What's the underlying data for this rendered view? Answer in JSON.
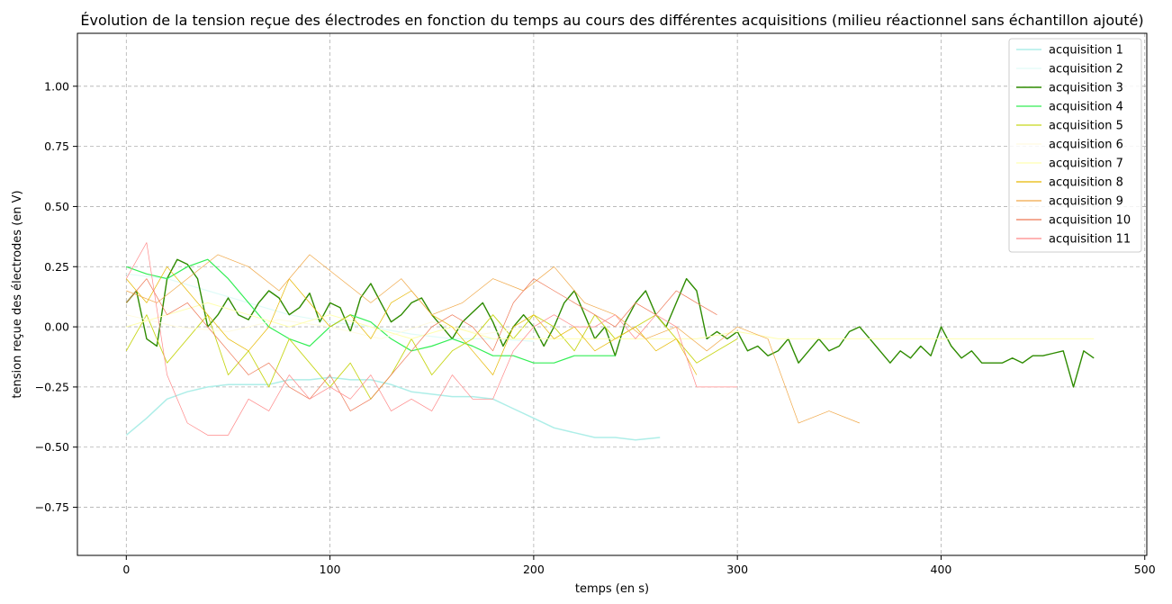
{
  "chart_data": {
    "type": "line",
    "title": "Évolution de la tension reçue des électrodes en fonction du temps au cours des différentes acquisitions (milieu réactionnel sans échantillon ajouté)",
    "xlabel": "temps (en s)",
    "ylabel": "tension reçue des électrodes (en V)",
    "xlim": [
      -24,
      501
    ],
    "ylim": [
      -0.95,
      1.22
    ],
    "xticks": [
      0,
      100,
      200,
      300,
      400,
      500
    ],
    "yticks": [
      -0.75,
      -0.5,
      -0.25,
      0.0,
      0.25,
      0.5,
      0.75,
      1.0
    ],
    "xtick_labels": [
      "0",
      "100",
      "200",
      "300",
      "400",
      "500"
    ],
    "ytick_labels": [
      "−0.75",
      "−0.50",
      "−0.25",
      "0.00",
      "0.25",
      "0.50",
      "0.75",
      "1.00"
    ],
    "grid": true,
    "legend_position": "top-right",
    "series": [
      {
        "name": "acquisition 1",
        "color": "#aeeee8",
        "width": 1.5,
        "x": [
          0,
          10,
          20,
          30,
          40,
          50,
          60,
          70,
          80,
          90,
          100,
          110,
          120,
          130,
          140,
          150,
          160,
          170,
          180,
          190,
          200,
          210,
          220,
          230,
          240,
          250,
          262
        ],
        "y": [
          -0.45,
          -0.38,
          -0.3,
          -0.27,
          -0.25,
          -0.24,
          -0.24,
          -0.24,
          -0.22,
          -0.22,
          -0.21,
          -0.22,
          -0.22,
          -0.24,
          -0.27,
          -0.28,
          -0.29,
          -0.29,
          -0.3,
          -0.34,
          -0.38,
          -0.42,
          -0.44,
          -0.46,
          -0.46,
          -0.47,
          -0.46
        ]
      },
      {
        "name": "acquisition 2",
        "color": "#e0fbf8",
        "width": 1.2,
        "x": [
          0,
          20,
          40,
          60,
          80,
          100,
          120,
          140,
          160,
          180,
          200
        ],
        "y": [
          0.22,
          0.2,
          0.15,
          0.1,
          0.05,
          0.02,
          0.0,
          -0.03,
          -0.05,
          -0.05,
          -0.06
        ]
      },
      {
        "name": "acquisition 3",
        "color": "#2e8b00",
        "width": 1.4,
        "x": [
          0,
          5,
          10,
          15,
          20,
          25,
          30,
          35,
          40,
          45,
          50,
          55,
          60,
          65,
          70,
          75,
          80,
          85,
          90,
          95,
          100,
          105,
          110,
          115,
          120,
          125,
          130,
          135,
          140,
          145,
          150,
          155,
          160,
          165,
          170,
          175,
          180,
          185,
          190,
          195,
          200,
          205,
          210,
          215,
          220,
          225,
          230,
          235,
          240,
          245,
          250,
          255,
          260,
          265,
          270,
          275,
          280,
          285,
          290,
          295,
          300,
          305,
          310,
          315,
          320,
          325,
          330,
          335,
          340,
          345,
          350,
          355,
          360,
          365,
          370,
          375,
          380,
          385,
          390,
          395,
          400,
          405,
          410,
          415,
          420,
          425,
          430,
          435,
          440,
          445,
          450,
          455,
          460,
          465,
          470,
          475
        ],
        "y": [
          0.1,
          0.15,
          -0.05,
          -0.08,
          0.2,
          0.28,
          0.26,
          0.2,
          0.0,
          0.05,
          0.12,
          0.05,
          0.03,
          0.1,
          0.15,
          0.12,
          0.05,
          0.08,
          0.14,
          0.02,
          0.1,
          0.08,
          -0.02,
          0.12,
          0.18,
          0.1,
          0.02,
          0.05,
          0.1,
          0.12,
          0.05,
          0.0,
          -0.05,
          0.02,
          0.06,
          0.1,
          0.02,
          -0.08,
          0.0,
          0.05,
          0.0,
          -0.08,
          0.0,
          0.1,
          0.15,
          0.05,
          -0.05,
          0.0,
          -0.12,
          0.02,
          0.1,
          0.15,
          0.05,
          0.0,
          0.1,
          0.2,
          0.15,
          -0.05,
          -0.02,
          -0.05,
          -0.02,
          -0.1,
          -0.08,
          -0.12,
          -0.1,
          -0.05,
          -0.15,
          -0.1,
          -0.05,
          -0.1,
          -0.08,
          -0.02,
          0.0,
          -0.05,
          -0.1,
          -0.15,
          -0.1,
          -0.13,
          -0.08,
          -0.12,
          0.0,
          -0.08,
          -0.13,
          -0.1,
          -0.15,
          -0.15,
          -0.15,
          -0.13,
          -0.15,
          -0.12,
          -0.12,
          -0.11,
          -0.1,
          -0.25,
          -0.1,
          -0.13
        ]
      },
      {
        "name": "acquisition 4",
        "color": "#33ee55",
        "width": 1.2,
        "x": [
          0,
          10,
          20,
          30,
          40,
          50,
          60,
          70,
          80,
          90,
          100,
          110,
          120,
          130,
          140,
          150,
          160,
          170,
          180,
          190,
          200,
          210,
          220,
          230,
          240
        ],
        "y": [
          0.25,
          0.22,
          0.2,
          0.25,
          0.28,
          0.2,
          0.1,
          0.0,
          -0.05,
          -0.08,
          0.0,
          0.05,
          0.02,
          -0.05,
          -0.1,
          -0.08,
          -0.05,
          -0.08,
          -0.12,
          -0.12,
          -0.15,
          -0.15,
          -0.12,
          -0.12,
          -0.12
        ]
      },
      {
        "name": "acquisition 5",
        "color": "#c8d61a",
        "width": 0.9,
        "x": [
          0,
          10,
          20,
          30,
          40,
          50,
          60,
          70,
          80,
          90,
          100,
          110,
          120,
          130,
          140,
          150,
          160,
          170,
          180,
          190,
          200,
          210,
          220,
          230,
          240,
          250,
          260,
          270,
          280,
          290,
          300
        ],
        "y": [
          -0.1,
          0.05,
          -0.15,
          -0.05,
          0.05,
          -0.2,
          -0.1,
          -0.25,
          -0.05,
          -0.15,
          -0.25,
          -0.15,
          -0.3,
          -0.2,
          -0.05,
          -0.2,
          -0.1,
          -0.05,
          0.05,
          -0.05,
          0.05,
          0.0,
          -0.1,
          0.05,
          -0.05,
          0.0,
          0.05,
          -0.05,
          -0.15,
          -0.1,
          -0.05
        ]
      },
      {
        "name": "acquisition 6",
        "color": "#fffbe0",
        "width": 1.0,
        "x": [
          0,
          25,
          50,
          75,
          100,
          125,
          150,
          175,
          200
        ],
        "y": [
          0.05,
          0.0,
          -0.02,
          0.03,
          0.0,
          -0.05,
          0.02,
          -0.03,
          0.0
        ]
      },
      {
        "name": "acquisition 7",
        "color": "#ffffb0",
        "width": 1.0,
        "x": [
          0,
          20,
          40,
          60,
          80,
          100,
          120,
          140,
          160,
          180,
          200,
          220,
          240,
          260,
          280,
          300,
          320,
          340,
          360,
          380,
          400,
          420,
          440,
          460,
          475
        ],
        "y": [
          0.0,
          0.05,
          0.1,
          0.05,
          0.0,
          0.05,
          0.0,
          -0.05,
          0.0,
          -0.05,
          -0.05,
          -0.05,
          -0.05,
          -0.05,
          -0.05,
          -0.02,
          -0.05,
          -0.05,
          -0.05,
          -0.05,
          -0.05,
          -0.05,
          -0.05,
          -0.05,
          -0.05
        ]
      },
      {
        "name": "acquisition 8",
        "color": "#e6b800",
        "width": 0.7,
        "x": [
          0,
          10,
          20,
          30,
          40,
          50,
          60,
          70,
          80,
          90,
          100,
          110,
          120,
          130,
          140,
          150,
          160,
          170,
          180,
          190,
          200,
          210,
          220,
          230,
          240,
          250,
          260,
          270,
          280
        ],
        "y": [
          0.2,
          0.1,
          0.25,
          0.15,
          0.05,
          -0.05,
          -0.1,
          0.0,
          0.2,
          0.1,
          0.0,
          0.05,
          -0.05,
          0.1,
          0.15,
          0.05,
          0.0,
          -0.1,
          -0.2,
          0.0,
          0.05,
          -0.05,
          0.0,
          -0.1,
          -0.05,
          0.0,
          -0.1,
          -0.05,
          -0.2
        ]
      },
      {
        "name": "acquisition 9",
        "color": "#f0a848",
        "width": 0.7,
        "x": [
          0,
          15,
          30,
          45,
          60,
          75,
          90,
          105,
          120,
          135,
          150,
          165,
          180,
          195,
          210,
          225,
          240,
          255,
          270,
          285,
          300,
          315,
          330,
          345,
          360
        ],
        "y": [
          0.15,
          0.1,
          0.2,
          0.3,
          0.25,
          0.15,
          0.3,
          0.2,
          0.1,
          0.2,
          0.05,
          0.1,
          0.2,
          0.15,
          0.25,
          0.1,
          0.05,
          -0.05,
          0.0,
          -0.1,
          0.0,
          -0.05,
          -0.4,
          -0.35,
          -0.4
        ]
      },
      {
        "name": "acquisition 10",
        "color": "#ee7755",
        "width": 0.7,
        "x": [
          0,
          10,
          20,
          30,
          40,
          50,
          60,
          70,
          80,
          90,
          100,
          110,
          120,
          130,
          140,
          150,
          160,
          170,
          180,
          190,
          200,
          210,
          220,
          230,
          240,
          250,
          260,
          270,
          280,
          290
        ],
        "y": [
          0.1,
          0.2,
          0.05,
          0.1,
          0.0,
          -0.1,
          -0.2,
          -0.15,
          -0.25,
          -0.3,
          -0.2,
          -0.35,
          -0.3,
          -0.2,
          -0.1,
          0.0,
          0.05,
          0.0,
          -0.1,
          0.1,
          0.2,
          0.15,
          0.1,
          0.05,
          0.0,
          0.1,
          0.05,
          0.15,
          0.1,
          0.05
        ]
      },
      {
        "name": "acquisition 11",
        "color": "#ff8888",
        "width": 0.7,
        "x": [
          0,
          10,
          20,
          30,
          40,
          50,
          60,
          70,
          80,
          90,
          100,
          110,
          120,
          130,
          140,
          150,
          160,
          170,
          180,
          190,
          200,
          210,
          220,
          230,
          240,
          250,
          260,
          270,
          280,
          290,
          300
        ],
        "y": [
          0.2,
          0.35,
          -0.2,
          -0.4,
          -0.45,
          -0.45,
          -0.3,
          -0.35,
          -0.2,
          -0.3,
          -0.25,
          -0.3,
          -0.2,
          -0.35,
          -0.3,
          -0.35,
          -0.2,
          -0.3,
          -0.3,
          -0.1,
          0.0,
          0.05,
          0.0,
          0.0,
          0.05,
          -0.05,
          0.05,
          0.0,
          -0.25,
          -0.25,
          -0.25
        ]
      }
    ]
  }
}
